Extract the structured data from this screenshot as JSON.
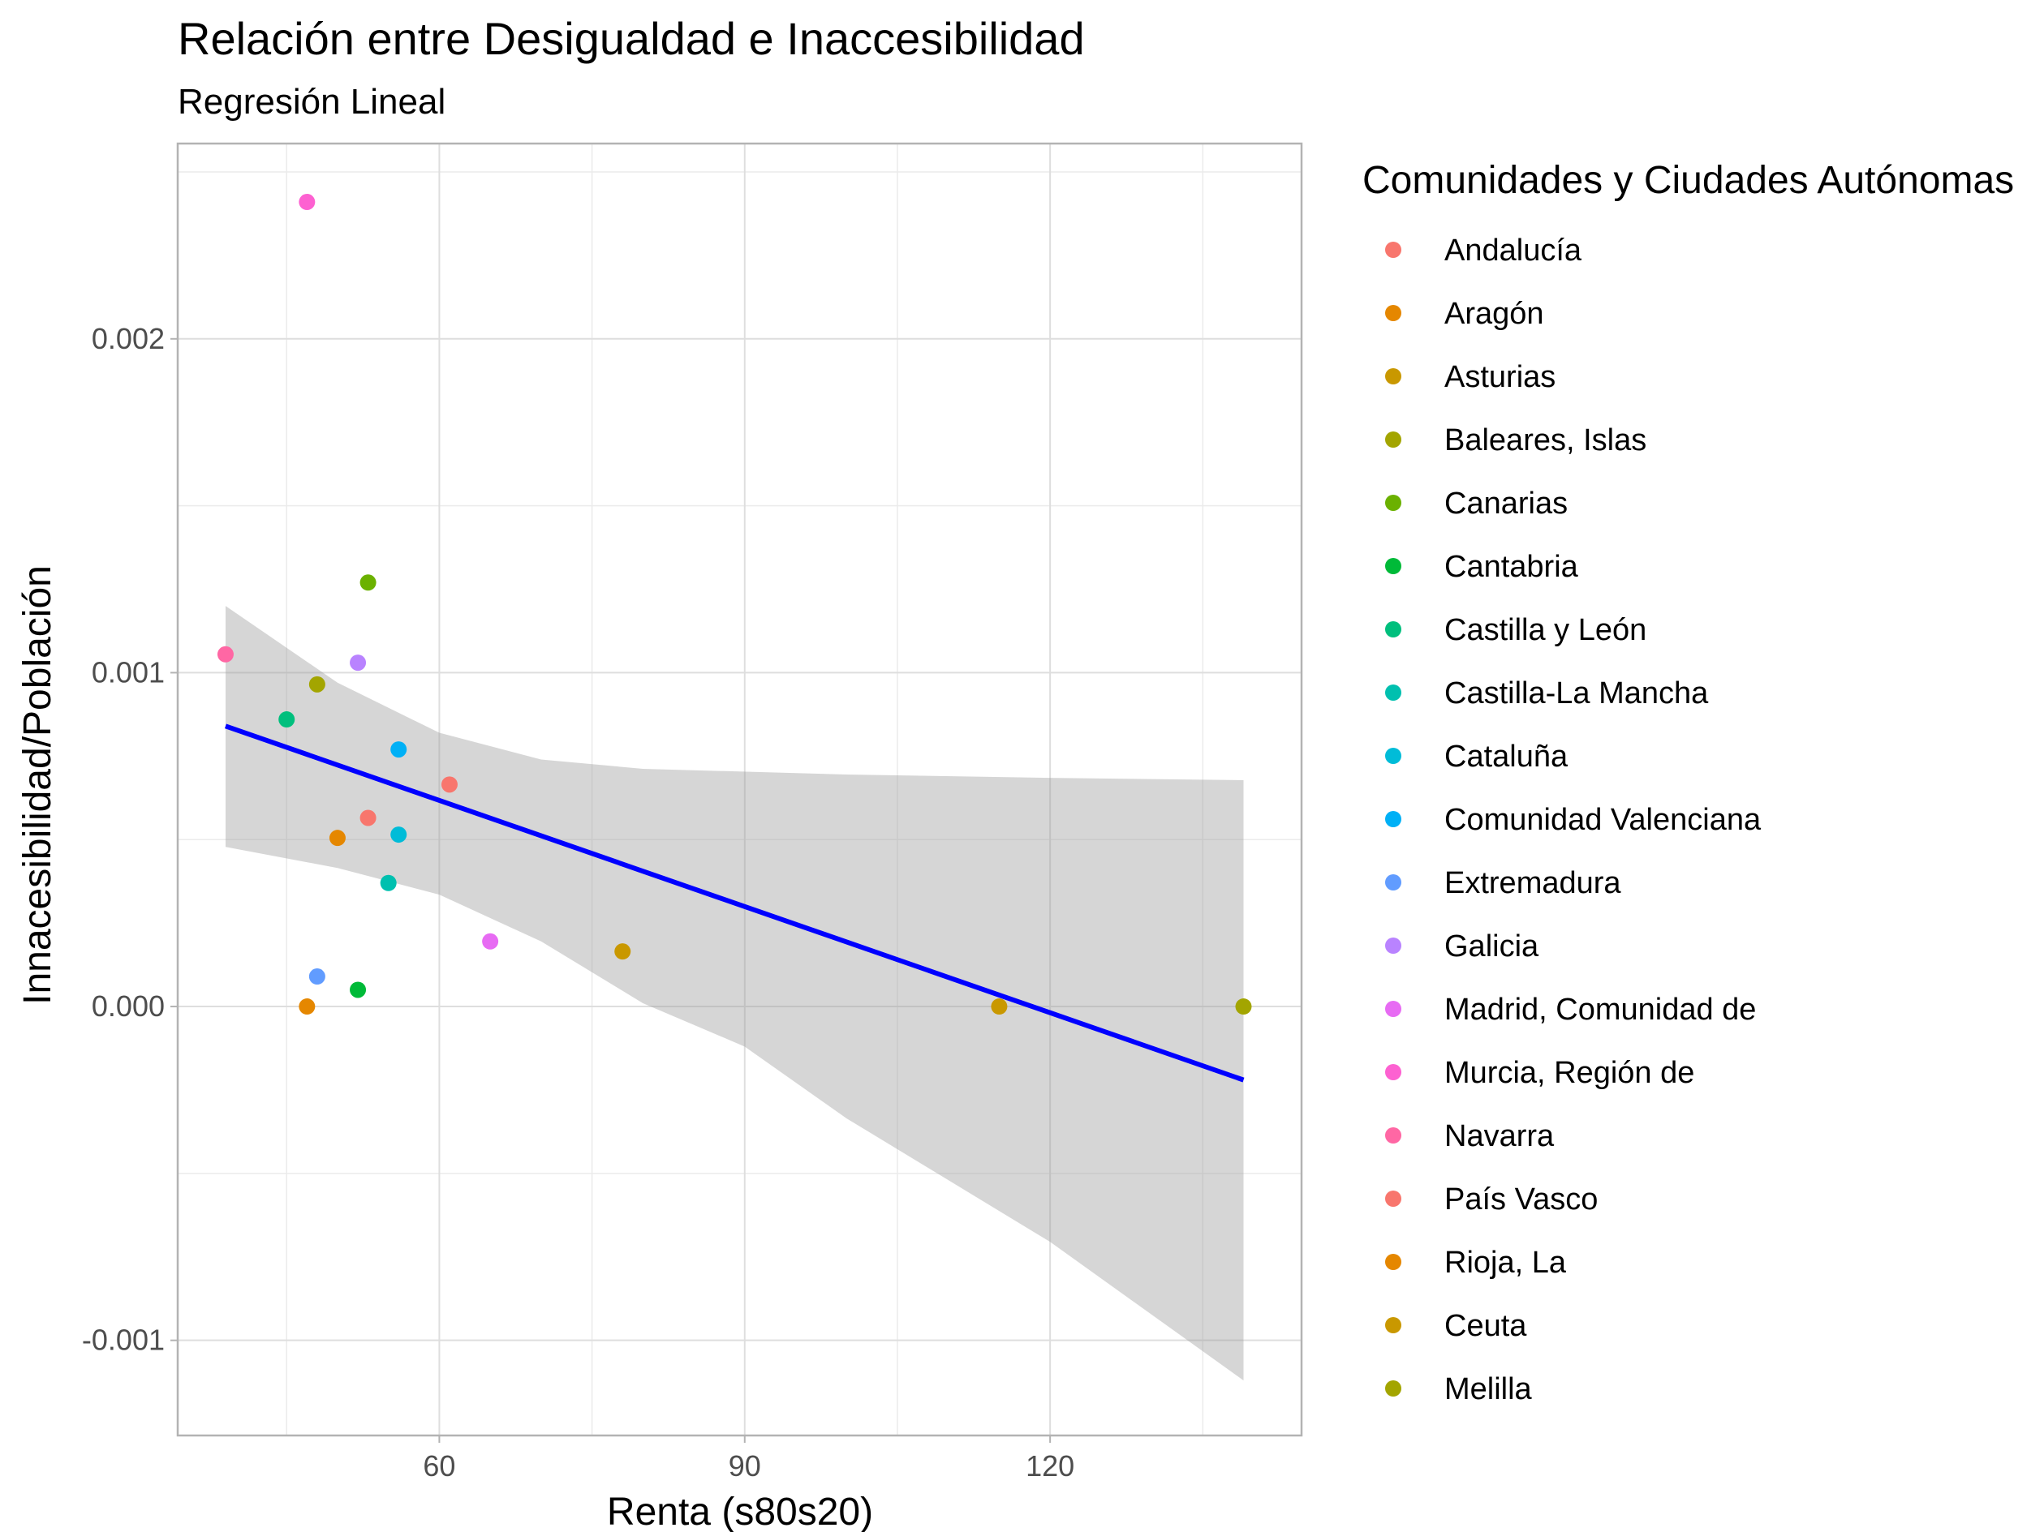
{
  "chart_data": {
    "type": "scatter",
    "title": "Relación entre Desigualdad e Inaccesibilidad",
    "subtitle": "Regresión Lineal",
    "xlabel": "Renta (s80s20)",
    "ylabel": "Innacesibilidad/Población",
    "xlim": [
      34.3,
      144.7
    ],
    "ylim": [
      -0.001285,
      0.002585
    ],
    "x_ticks": [
      60,
      90,
      120
    ],
    "x_tick_labels": [
      "60",
      "90",
      "120"
    ],
    "y_ticks": [
      -0.001,
      0.0,
      0.001,
      0.002
    ],
    "y_tick_labels": [
      "-0.001",
      "0.000",
      "0.001",
      "0.002"
    ],
    "grid": true,
    "legend": {
      "title": "Comunidades y Ciudades Autónomas",
      "position": "right",
      "entries": [
        {
          "label": "Andalucía",
          "color": "#F8766D"
        },
        {
          "label": "Aragón",
          "color": "#E58700"
        },
        {
          "label": "Asturias",
          "color": "#C99800"
        },
        {
          "label": "Baleares, Islas",
          "color": "#A3A500"
        },
        {
          "label": "Canarias",
          "color": "#6BB100"
        },
        {
          "label": "Cantabria",
          "color": "#00BA38"
        },
        {
          "label": "Castilla y León",
          "color": "#00BF7D"
        },
        {
          "label": "Castilla-La Mancha",
          "color": "#00C0AF"
        },
        {
          "label": "Cataluña",
          "color": "#00BCD8"
        },
        {
          "label": "Comunidad Valenciana",
          "color": "#00B0F6"
        },
        {
          "label": "Extremadura",
          "color": "#619CFF"
        },
        {
          "label": "Galicia",
          "color": "#B983FF"
        },
        {
          "label": "Madrid, Comunidad de",
          "color": "#E76BF3"
        },
        {
          "label": "Murcia, Región de",
          "color": "#FD61D1"
        },
        {
          "label": "Navarra",
          "color": "#FF67A4"
        },
        {
          "label": "País Vasco",
          "color": "#F8766D"
        },
        {
          "label": "Rioja, La",
          "color": "#E58700"
        },
        {
          "label": "Ceuta",
          "color": "#C99800"
        },
        {
          "label": "Melilla",
          "color": "#A3A500"
        }
      ]
    },
    "points": [
      {
        "x": 61.0,
        "y": 0.000665,
        "color": "#F8766D"
      },
      {
        "x": 47.0,
        "y": 0.0,
        "color": "#E58700"
      },
      {
        "x": 78.0,
        "y": 0.000165,
        "color": "#C99800"
      },
      {
        "x": 48.0,
        "y": 0.000965,
        "color": "#A3A500"
      },
      {
        "x": 53.0,
        "y": 0.00127,
        "color": "#6BB100"
      },
      {
        "x": 52.0,
        "y": 5e-05,
        "color": "#00BA38"
      },
      {
        "x": 45.0,
        "y": 0.00086,
        "color": "#00BF7D"
      },
      {
        "x": 55.0,
        "y": 0.00037,
        "color": "#00C0AF"
      },
      {
        "x": 56.0,
        "y": 0.000515,
        "color": "#00BCD8"
      },
      {
        "x": 56.0,
        "y": 0.00077,
        "color": "#00B0F6"
      },
      {
        "x": 48.0,
        "y": 9e-05,
        "color": "#619CFF"
      },
      {
        "x": 52.0,
        "y": 0.00103,
        "color": "#B983FF"
      },
      {
        "x": 65.0,
        "y": 0.000195,
        "color": "#E76BF3"
      },
      {
        "x": 47.0,
        "y": 0.00241,
        "color": "#FD61D1"
      },
      {
        "x": 39.0,
        "y": 0.001055,
        "color": "#FF67A4"
      },
      {
        "x": 53.0,
        "y": 0.000565,
        "color": "#F8766D"
      },
      {
        "x": 50.0,
        "y": 0.000505,
        "color": "#E58700"
      },
      {
        "x": 115.0,
        "y": 0.0,
        "color": "#C99800"
      },
      {
        "x": 139.0,
        "y": 0.0,
        "color": "#A3A500"
      }
    ],
    "regression": {
      "color": "#0000FF",
      "line": [
        [
          39.0,
          0.00084
        ],
        [
          139.0,
          -0.00022
        ]
      ],
      "ci_upper": [
        [
          39.0,
          0.0012
        ],
        [
          50.0,
          0.00097
        ],
        [
          60.0,
          0.00082
        ],
        [
          70.0,
          0.00074
        ],
        [
          80.0,
          0.000712
        ],
        [
          100.0,
          0.000695
        ],
        [
          120.0,
          0.000685
        ],
        [
          139.0,
          0.000678
        ]
      ],
      "ci_lower": [
        [
          39.0,
          0.000478
        ],
        [
          50.0,
          0.000415
        ],
        [
          60.0,
          0.000335
        ],
        [
          70.0,
          0.000195
        ],
        [
          80.0,
          1e-05
        ],
        [
          90.0,
          -0.00012
        ],
        [
          100.0,
          -0.000335
        ],
        [
          120.0,
          -0.000705
        ],
        [
          139.0,
          -0.00112
        ]
      ]
    }
  }
}
